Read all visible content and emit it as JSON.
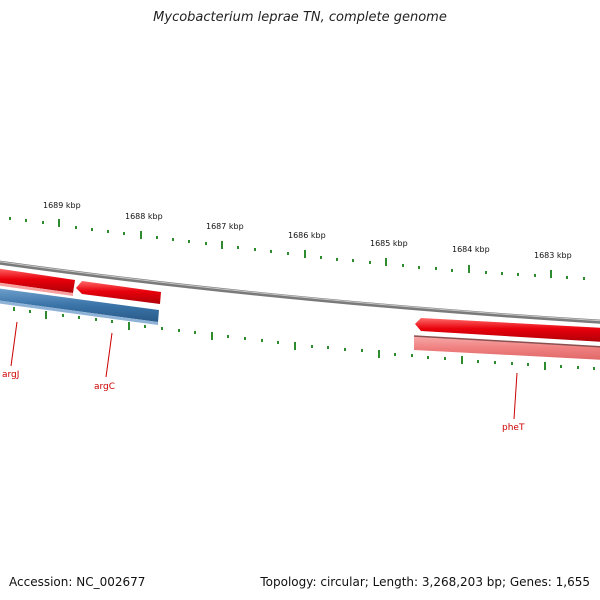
{
  "title": "Mycobacterium leprae TN, complete genome",
  "footer": {
    "accession": "Accession: NC_002677",
    "summary": "Topology: circular; Length: 3,268,203 bp; Genes: 1,655"
  },
  "kbp_labels": [
    "1689 kbp",
    "1688 kbp",
    "1687 kbp",
    "1686 kbp",
    "1685 kbp",
    "1684 kbp",
    "1683 kbp"
  ],
  "genes": [
    {
      "name": "argJ"
    },
    {
      "name": "argC"
    },
    {
      "name": "pheT"
    }
  ],
  "colors": {
    "forward_gene": "#e8000b",
    "reverse_gene": "#3b74a8",
    "rna_gene": "#f08080",
    "backbone": "#888888",
    "ticks": "#2e8b2e",
    "label": "#cc0000"
  }
}
